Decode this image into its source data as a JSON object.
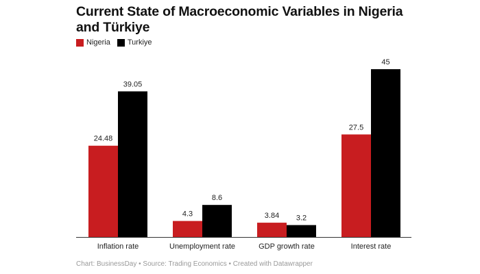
{
  "chart_data": {
    "type": "bar",
    "title": "Current State of Macroeconomic Variables in Nigeria and Türkiye",
    "categories": [
      "Inflation rate",
      "Unemployment rate",
      "GDP growth rate",
      "Interest rate"
    ],
    "series": [
      {
        "name": "Nigeria",
        "color": "#c81d20",
        "values": [
          24.48,
          4.3,
          3.84,
          27.5
        ],
        "labels": [
          "24.48",
          "4.3",
          "3.84",
          "27.5"
        ]
      },
      {
        "name": "Turkiye",
        "color": "#000000",
        "values": [
          39.05,
          8.6,
          3.2,
          45
        ],
        "labels": [
          "39.05",
          "8.6",
          "3.2",
          "45"
        ]
      }
    ],
    "ylim": [
      0,
      45
    ],
    "grid": false,
    "legend": "top-left",
    "footer": "Chart: BusinessDay • Source: Trading Economics • Created with Datawrapper"
  }
}
